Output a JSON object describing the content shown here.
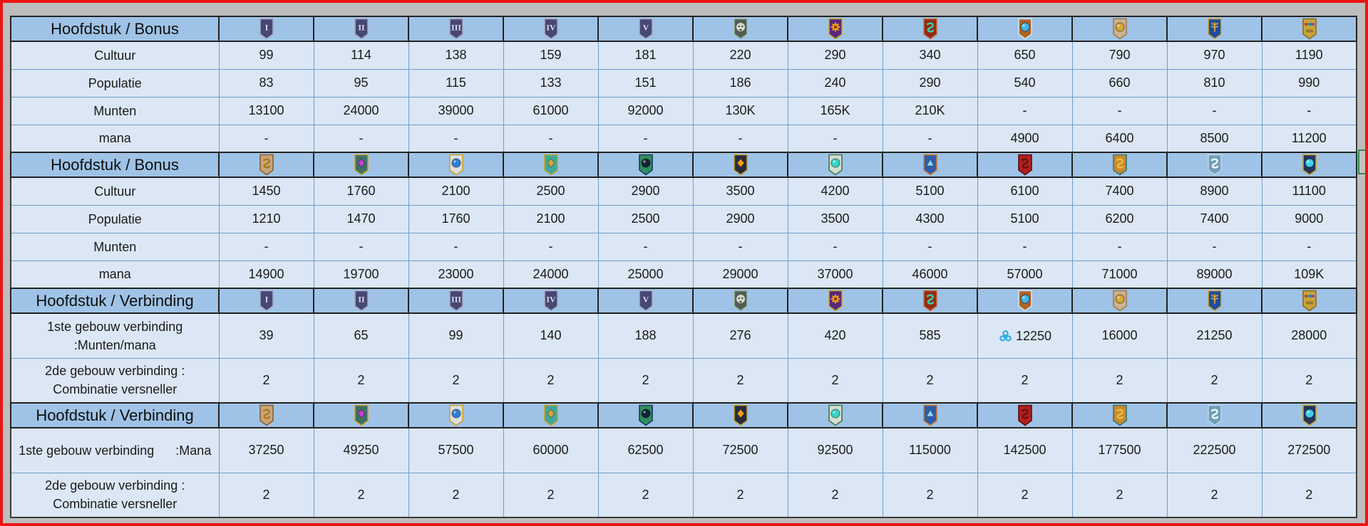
{
  "colors": {
    "canvas": "#bdbdbd",
    "frame": "#ed1515",
    "header_fill": "#9fc3e6",
    "row_fill": "#dbe7f4",
    "grid_blue": "#6f9cd0",
    "grid_dark": "#222222",
    "mana_icon_blue": "#29a8e6",
    "selection_green": "#2f8a50"
  },
  "table": {
    "icon_sets": {
      "A": [
        {
          "name": "chapter-1-icon",
          "numeral": "I",
          "banner": "#474773",
          "stroke": "#a9a9c6"
        },
        {
          "name": "chapter-2-icon",
          "numeral": "II",
          "banner": "#474773",
          "stroke": "#a9a9c6"
        },
        {
          "name": "chapter-3-icon",
          "numeral": "III",
          "banner": "#474773",
          "stroke": "#a9a9c6"
        },
        {
          "name": "chapter-4-icon",
          "numeral": "IV",
          "banner": "#474773",
          "stroke": "#a9a9c6"
        },
        {
          "name": "chapter-5-icon",
          "numeral": "V",
          "banner": "#474773",
          "stroke": "#a9a9c6"
        },
        {
          "name": "chapter-6-skull-banner-icon",
          "banner": "#515e52",
          "stroke": "#9fb8a8",
          "emblem": "skull",
          "emblem_color": "#d8d8cc"
        },
        {
          "name": "chapter-7-gear-banner-icon",
          "banner": "#54277d",
          "stroke": "#c9a227",
          "emblem": "gear",
          "emblem_color": "#f0991a"
        },
        {
          "name": "chapter-8-dragon-banner-icon",
          "banner": "#8f2d1a",
          "stroke": "#c96a3a",
          "emblem": "swirl",
          "emblem_color": "#3fd0a8"
        },
        {
          "name": "chapter-9-spiral-banner-icon",
          "banner": "#b06226",
          "stroke": "#cfe8f0",
          "emblem": "orb",
          "emblem_color": "#45b8e8"
        },
        {
          "name": "chapter-10-rune-banner-icon",
          "banner": "#cdb391",
          "stroke": "#9a7a4a",
          "emblem": "orb",
          "emblem_color": "#d9a63a"
        },
        {
          "name": "chapter-11-wheat-banner-icon",
          "banner": "#1d4f9e",
          "stroke": "#d9a63a",
          "emblem": "wheat",
          "emblem_color": "#d9a63a"
        },
        {
          "name": "chapter-12-gems-banner-icon",
          "banner": "#caa23f",
          "stroke": "#8a6a20",
          "emblem": "dots",
          "emblem_color": "#d03434"
        }
      ],
      "B": [
        {
          "name": "chapter-13-scarab-banner-icon",
          "banner": "#caa379",
          "stroke": "#8a5f2f",
          "emblem": "swirl",
          "emblem_color": "#a87b1e"
        },
        {
          "name": "chapter-14-gem-banner-icon",
          "banner": "#3f6f62",
          "stroke": "#c9a227",
          "emblem": "gem",
          "emblem_color": "#c13fd0"
        },
        {
          "name": "chapter-15-orb-banner-icon",
          "banner": "#dcdfe6",
          "stroke": "#c9a227",
          "emblem": "orb",
          "emblem_color": "#2f7fd9"
        },
        {
          "name": "chapter-16-bat-banner-icon",
          "banner": "#3fa89c",
          "stroke": "#c9a227",
          "emblem": "gem",
          "emblem_color": "#d9a63a"
        },
        {
          "name": "chapter-17-sphere-banner-icon",
          "banner": "#2f8f5f",
          "stroke": "#1a3a5a",
          "emblem": "orb",
          "emblem_color": "#16233a"
        },
        {
          "name": "chapter-18-heart-banner-icon",
          "banner": "#272c42",
          "stroke": "#c9a227",
          "emblem": "gem",
          "emblem_color": "#f0a01a"
        },
        {
          "name": "chapter-19-glow-orb-banner-icon",
          "banner": "#d5ddd2",
          "stroke": "#3f7a4f",
          "emblem": "orb",
          "emblem_color": "#35d8c8"
        },
        {
          "name": "chapter-20-shield-banner-icon",
          "banner": "#2e5cad",
          "stroke": "#d07a2a",
          "emblem": "triangle",
          "emblem_color": "#8fd4f2"
        },
        {
          "name": "chapter-21-red-banner-icon",
          "banner": "#b01f1f",
          "stroke": "#5a0f0f",
          "emblem": "swirl",
          "emblem_color": "#6a1010"
        },
        {
          "name": "chapter-22-snake-banner-icon",
          "banner": "#c98a2f",
          "stroke": "#2f7a72",
          "emblem": "swirl",
          "emblem_color": "#e8c03f"
        },
        {
          "name": "chapter-23-swirl-banner-icon",
          "banner": "#6fa0b8",
          "stroke": "#bcd8e4",
          "emblem": "swirl",
          "emblem_color": "#f4f8fb"
        },
        {
          "name": "chapter-24-crown-banner-icon",
          "banner": "#26355c",
          "stroke": "#c9a227",
          "emblem": "orb",
          "emblem_color": "#3fd0e8"
        }
      ]
    },
    "sections": [
      {
        "header": "Hoofdstuk / Bonus",
        "icon_set": "A",
        "rows": [
          {
            "label_lines": [
              "Cultuur"
            ],
            "values": [
              "99",
              "114",
              "138",
              "159",
              "181",
              "220",
              "290",
              "340",
              "650",
              "790",
              "970",
              "1190"
            ]
          },
          {
            "label_lines": [
              "Populatie"
            ],
            "values": [
              "83",
              "95",
              "115",
              "133",
              "151",
              "186",
              "240",
              "290",
              "540",
              "660",
              "810",
              "990"
            ]
          },
          {
            "label_lines": [
              "Munten"
            ],
            "values": [
              "13100",
              "24000",
              "39000",
              "61000",
              "92000",
              "130K",
              "165K",
              "210K",
              "-",
              "-",
              "-",
              "-"
            ]
          },
          {
            "label_lines": [
              "mana"
            ],
            "values": [
              "-",
              "-",
              "-",
              "-",
              "-",
              "-",
              "-",
              "-",
              "4900",
              "6400",
              "8500",
              "11200"
            ]
          }
        ]
      },
      {
        "header": "Hoofdstuk / Bonus",
        "icon_set": "B",
        "rows": [
          {
            "label_lines": [
              "Cultuur"
            ],
            "values": [
              "1450",
              "1760",
              "2100",
              "2500",
              "2900",
              "3500",
              "4200",
              "5100",
              "6100",
              "7400",
              "8900",
              "11100"
            ]
          },
          {
            "label_lines": [
              "Populatie"
            ],
            "values": [
              "1210",
              "1470",
              "1760",
              "2100",
              "2500",
              "2900",
              "3500",
              "4300",
              "5100",
              "6200",
              "7400",
              "9000"
            ]
          },
          {
            "label_lines": [
              "Munten"
            ],
            "values": [
              "-",
              "-",
              "-",
              "-",
              "-",
              "-",
              "-",
              "-",
              "-",
              "-",
              "-",
              "-"
            ]
          },
          {
            "label_lines": [
              "mana"
            ],
            "values": [
              "14900",
              "19700",
              "23000",
              "24000",
              "25000",
              "29000",
              "37000",
              "46000",
              "57000",
              "71000",
              "89000",
              "109K"
            ]
          }
        ]
      },
      {
        "header": "Hoofdstuk / Verbinding",
        "icon_set": "A",
        "rows": [
          {
            "label_lines": [
              "1ste gebouw verbinding",
              ":Munten/mana"
            ],
            "values": [
              "39",
              "65",
              "99",
              "140",
              "188",
              "276",
              "420",
              "585",
              {
                "icon": "mana-icon",
                "text": "12250"
              },
              "16000",
              "21250",
              "28000"
            ]
          },
          {
            "label_lines": [
              "2de gebouw verbinding :",
              "Combinatie versneller"
            ],
            "values": [
              "2",
              "2",
              "2",
              "2",
              "2",
              "2",
              "2",
              "2",
              "2",
              "2",
              "2",
              "2"
            ]
          }
        ]
      },
      {
        "header": "Hoofdstuk / Verbinding",
        "icon_set": "B",
        "rows": [
          {
            "label_lines": [
              "1ste gebouw verbinding      :Mana"
            ],
            "values": [
              "37250",
              "49250",
              "57500",
              "60000",
              "62500",
              "72500",
              "92500",
              "115000",
              "142500",
              "177500",
              "222500",
              "272500"
            ]
          },
          {
            "label_lines": [
              "2de gebouw verbinding :",
              "Combinatie versneller"
            ],
            "values": [
              "2",
              "2",
              "2",
              "2",
              "2",
              "2",
              "2",
              "2",
              "2",
              "2",
              "2",
              "2"
            ]
          }
        ]
      }
    ]
  }
}
